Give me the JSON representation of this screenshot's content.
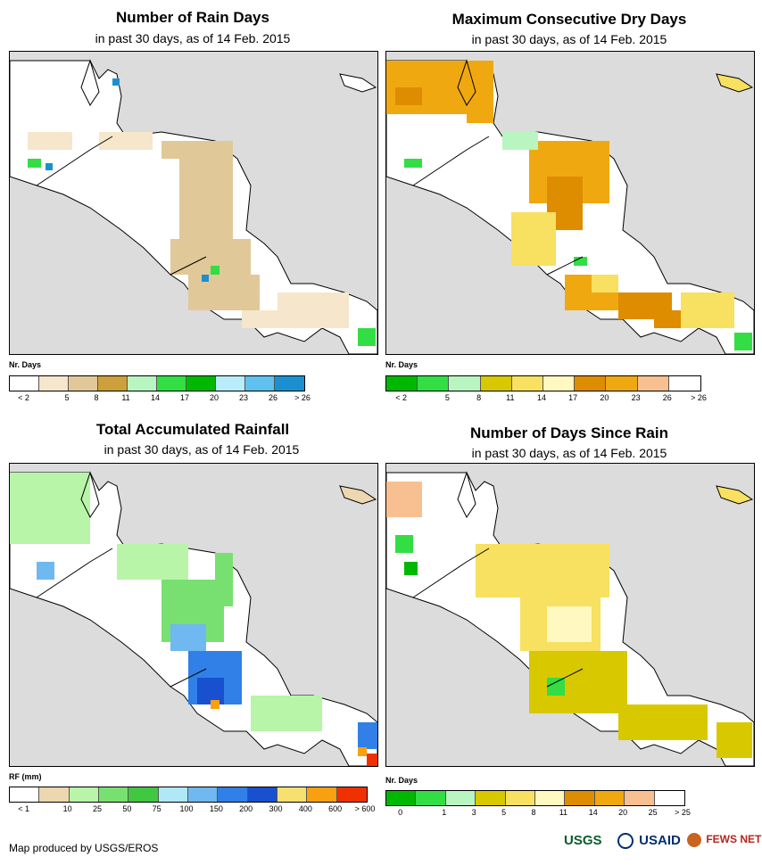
{
  "panels": {
    "rain_days": {
      "title": "Number of Rain Days",
      "subtitle": "in past 30 days, as of 14 Feb. 2015",
      "legend_title": "Nr. Days",
      "legend_colors": [
        "#ffffff",
        "#f5e6cc",
        "#e0c898",
        "#cda03c",
        "#b8f5c0",
        "#33dd44",
        "#00b800",
        "#b8ecf8",
        "#60c0ee",
        "#1a90d0"
      ],
      "legend_labels": [
        "< 2",
        "5",
        "8",
        "11",
        "14",
        "17",
        "20",
        "23",
        "26",
        "> 26"
      ]
    },
    "dry_days": {
      "title": "Maximum Consecutive Dry Days",
      "subtitle": "in past 30 days, as of 14 Feb. 2015",
      "legend_title": "Nr. Days",
      "legend_colors": [
        "#00b800",
        "#33dd44",
        "#b8f5c0",
        "#d8c800",
        "#f8e060",
        "#fff8c0",
        "#de8c00",
        "#f0a810",
        "#f8c090",
        "#ffffff"
      ],
      "legend_labels": [
        "< 2",
        "5",
        "8",
        "11",
        "14",
        "17",
        "20",
        "23",
        "26",
        "> 26"
      ]
    },
    "rainfall": {
      "title": "Total Accumulated Rainfall",
      "subtitle": "in past 30 days, as of 14 Feb. 2015",
      "legend_title": "RF (mm)",
      "legend_colors": [
        "#ffffff",
        "#ecd7b0",
        "#b8f5a8",
        "#78e070",
        "#40c840",
        "#b0e8f8",
        "#70b8f0",
        "#3080e8",
        "#1850d0",
        "#f8e070",
        "#f8a010",
        "#f03000"
      ],
      "legend_labels": [
        "< 1",
        "10",
        "25",
        "50",
        "75",
        "100",
        "150",
        "200",
        "300",
        "400",
        "600",
        "> 600"
      ]
    },
    "days_since": {
      "title": "Number of Days Since Rain",
      "subtitle": "in past 30 days, as of 14 Feb. 2015",
      "legend_title": "Nr. Days",
      "legend_colors": [
        "#00b800",
        "#33dd44",
        "#b8f5c0",
        "#d8c800",
        "#f8e060",
        "#fff8c0",
        "#de8c00",
        "#f0a810",
        "#f8c090",
        "#ffffff"
      ],
      "legend_labels": [
        "0",
        "1",
        "3",
        "5",
        "8",
        "11",
        "14",
        "20",
        "25",
        "> 25"
      ]
    }
  },
  "footer": "Map produced by USGS/EROS",
  "logos": {
    "usgs": "USGS",
    "usaid": "USAID",
    "fewsnet": "FEWS NET"
  },
  "colors": {
    "ocean": "#dcdcdc",
    "land": "#ffffff",
    "border": "#000000"
  }
}
